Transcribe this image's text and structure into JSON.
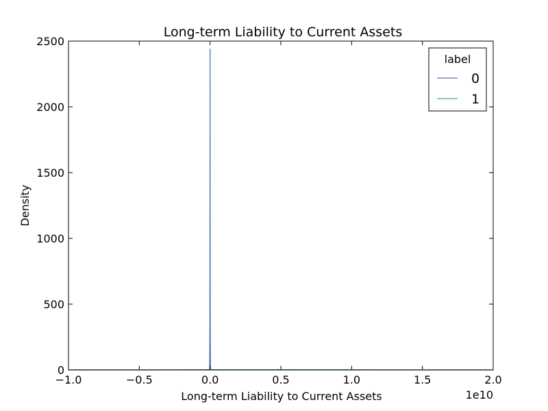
{
  "chart_data": {
    "type": "line",
    "title": "Long-term Liability to Current Assets",
    "xlabel": "Long-term Liability to Current Assets",
    "ylabel": "Density",
    "x_offset_label": "1e10",
    "xlim": [
      -1.0,
      2.0
    ],
    "ylim": [
      0,
      2500
    ],
    "xticks": [
      -1.0,
      -0.5,
      0.0,
      0.5,
      1.0,
      1.5,
      2.0
    ],
    "xtick_labels": [
      "−1.0",
      "−0.5",
      "0.0",
      "0.5",
      "1.0",
      "1.5",
      "2.0"
    ],
    "yticks": [
      0,
      500,
      1000,
      1500,
      2000,
      2500
    ],
    "ytick_labels": [
      "0",
      "500",
      "1000",
      "1500",
      "2000",
      "2500"
    ],
    "grid": false,
    "legend": {
      "title": "label",
      "placement": "top-right"
    },
    "series": [
      {
        "name": "0",
        "color": "#4c72b0",
        "x": [
          -1.0,
          -0.003,
          -0.0015,
          -0.0005,
          0.0,
          0.0005,
          0.0015,
          0.003,
          2.0
        ],
        "y": [
          0,
          0,
          300,
          1400,
          2440,
          1400,
          300,
          0,
          0
        ]
      },
      {
        "name": "1",
        "color": "#55a868",
        "x": [
          -1.0,
          -0.5,
          0.0,
          0.5,
          1.0,
          1.27,
          1.5,
          2.0
        ],
        "y": [
          0,
          0,
          2,
          2,
          2,
          0,
          0,
          0
        ]
      }
    ]
  }
}
